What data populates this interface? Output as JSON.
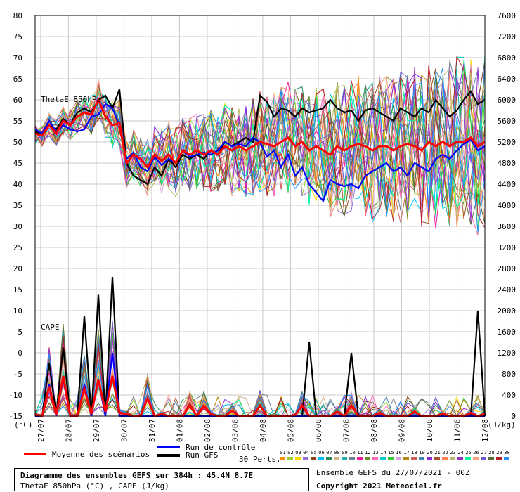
{
  "chart_data": {
    "type": "line",
    "title": "Diagramme des ensembles GEFS sur 384h : 45.4N 8.7E",
    "subtitle": "ThetaE 850hPa (°C) , CAPE (J/kg)",
    "panel_labels": [
      "ThetaE 850hPa",
      "CAPE"
    ],
    "left_axis": {
      "label": "(°C)",
      "ylim": [
        -15,
        80
      ],
      "ticks": [
        80,
        75,
        70,
        65,
        60,
        55,
        50,
        45,
        40,
        35,
        30,
        25,
        20,
        15,
        10,
        5,
        0,
        -5,
        -10,
        -15
      ]
    },
    "right_axis": {
      "label": "(J/kg)",
      "ylim": [
        0,
        7600
      ],
      "ticks": [
        7600,
        7200,
        6800,
        6400,
        6000,
        5600,
        5200,
        4800,
        4400,
        4000,
        3600,
        3200,
        2800,
        2400,
        2000,
        1600,
        1200,
        800,
        400,
        0
      ]
    },
    "x_axis": {
      "categories": [
        "27/07",
        "28/07",
        "29/07",
        "30/07",
        "31/07",
        "01/08",
        "02/08",
        "03/08",
        "04/08",
        "05/08",
        "06/08",
        "07/08",
        "08/08",
        "09/08",
        "10/08",
        "11/08",
        "12/08"
      ]
    },
    "grid": true,
    "series": [
      {
        "name": "Moyenne des scénarios",
        "color": "#ff0000",
        "theta_e": [
          52,
          51.5,
          54,
          52,
          55,
          54,
          56,
          57,
          56.5,
          60,
          56,
          54,
          54.5,
          45,
          47,
          46,
          44,
          47,
          45.5,
          47,
          45,
          48,
          47,
          48,
          47,
          48,
          47,
          49,
          48,
          49,
          48,
          49,
          50,
          49.5,
          49,
          50,
          51,
          49,
          50,
          48,
          49,
          48,
          47,
          49,
          48,
          49,
          49.5,
          49,
          48,
          49,
          49,
          48,
          49,
          49.5,
          49,
          48,
          50,
          49,
          50,
          49,
          50,
          50,
          51,
          49,
          50
        ],
        "cape_jkg": [
          30,
          0,
          560,
          20,
          760,
          0,
          0,
          520,
          40,
          700,
          80,
          760,
          60,
          40,
          0,
          0,
          340,
          0,
          40,
          0,
          0,
          0,
          200,
          0,
          200,
          40,
          0,
          0,
          100,
          0,
          0,
          0,
          200,
          0,
          0,
          0,
          0,
          20,
          200,
          0,
          0,
          0,
          0,
          80,
          0,
          200,
          0,
          0,
          0,
          60,
          0,
          0,
          0,
          0,
          80,
          0,
          0,
          0,
          40,
          0,
          0,
          0,
          60,
          0,
          40
        ]
      },
      {
        "name": "Run de contrôle",
        "color": "#0000ff",
        "theta_e": [
          53,
          52,
          55,
          52.5,
          54,
          53,
          52.5,
          53,
          56,
          56.5,
          59,
          58,
          54,
          46,
          47.5,
          44,
          43,
          46.5,
          44.5,
          46,
          45,
          48,
          46.5,
          47,
          47.5,
          47,
          48,
          50,
          49,
          49.5,
          49,
          51,
          50,
          46.5,
          48,
          44,
          47,
          42,
          44,
          40,
          38,
          36,
          41,
          40,
          39.5,
          40,
          39,
          42,
          43,
          44,
          45,
          43,
          44,
          42,
          45,
          44,
          43,
          46,
          47,
          46,
          48,
          49.5,
          50.5,
          48,
          49
        ],
        "cape_jkg": [
          0,
          0,
          600,
          0,
          700,
          0,
          0,
          600,
          0,
          680,
          0,
          1200,
          0,
          0,
          0,
          0,
          0,
          0,
          0,
          0,
          0,
          0,
          0,
          0,
          0,
          0,
          0,
          0,
          0,
          0,
          0,
          0,
          0,
          0,
          0,
          0,
          0,
          0,
          0,
          0,
          0,
          0,
          0,
          0,
          0,
          0,
          0,
          0,
          0,
          0,
          0,
          0,
          0,
          0,
          0,
          0,
          0,
          0,
          0,
          0,
          0,
          0,
          0,
          0,
          0
        ]
      },
      {
        "name": "Run GFS",
        "color": "#000000",
        "theta_e": [
          52.5,
          51.5,
          54,
          53,
          55.5,
          54,
          57,
          58,
          57,
          60,
          61,
          58,
          62.5,
          45,
          42,
          41,
          40,
          44,
          42,
          46,
          44,
          47,
          46,
          47,
          46,
          48,
          47,
          50,
          49,
          50,
          51,
          50,
          61,
          59.5,
          56,
          58,
          57.5,
          56,
          58,
          57,
          57.5,
          58,
          60,
          58,
          57,
          57.5,
          55,
          57.5,
          58,
          57,
          56,
          55,
          58,
          57,
          56,
          58,
          57,
          60,
          58,
          56,
          57.5,
          60,
          62,
          59,
          60
        ],
        "cape_jkg": [
          20,
          0,
          1000,
          20,
          1300,
          0,
          0,
          1900,
          0,
          2300,
          0,
          2640,
          0,
          0,
          0,
          0,
          0,
          0,
          0,
          0,
          0,
          0,
          0,
          0,
          0,
          0,
          0,
          0,
          0,
          0,
          0,
          0,
          0,
          0,
          0,
          0,
          0,
          0,
          0,
          1400,
          0,
          0,
          0,
          0,
          0,
          1200,
          0,
          0,
          0,
          0,
          0,
          0,
          0,
          0,
          0,
          0,
          0,
          0,
          0,
          0,
          0,
          0,
          0,
          2000,
          0
        ]
      }
    ],
    "ensemble_members": 30
  },
  "legend": {
    "mean_label": "Moyenne des scénarios",
    "control_label": "Run de contrôle",
    "gfs_label": "Run GFS",
    "perts_label": "30 Perts.",
    "pert_numbers": [
      "01",
      "02",
      "03",
      "04",
      "05",
      "06",
      "07",
      "08",
      "09",
      "10",
      "11",
      "12",
      "13",
      "14",
      "15",
      "16",
      "17",
      "18",
      "19",
      "20",
      "21",
      "22",
      "23",
      "24",
      "25",
      "26",
      "27",
      "28",
      "29",
      "30"
    ],
    "pert_colors": [
      "#ff8c00",
      "#9acd32",
      "#ffd700",
      "#9370db",
      "#8b4513",
      "#00bfff",
      "#2e8b57",
      "#d2b48c",
      "#20b2aa",
      "#708090",
      "#ff1493",
      "#6b8e23",
      "#ff69b4",
      "#00ced1",
      "#32cd32",
      "#dda0dd",
      "#b8860b",
      "#cd5c5c",
      "#4682b4",
      "#8a2be2",
      "#a0522d",
      "#ff7f50",
      "#bdb76b",
      "#9932cc",
      "#00fa9a",
      "#ffa07a",
      "#6a5acd",
      "#556b2f",
      "#b22222",
      "#1e90ff"
    ]
  },
  "footer": {
    "title": "Diagramme des ensembles GEFS sur 384h : 45.4N 8.7E",
    "subtitle": "ThetaE 850hPa (°C) , CAPE (J/kg)",
    "run_info": "Ensemble GEFS du 27/07/2021 - 00Z",
    "copyright": "Copyright 2021 Meteociel.fr"
  }
}
